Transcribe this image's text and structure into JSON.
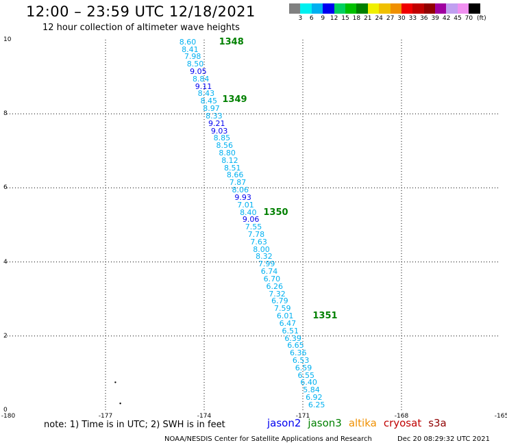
{
  "header": {
    "title": "12:00 – 23:59 UTC 12/18/2021",
    "subtitle": "12 hour collection of altimeter wave heights"
  },
  "colorbar": {
    "colors": [
      "#808080",
      "#00f0f0",
      "#00b0f0",
      "#0000f0",
      "#00d060",
      "#00c000",
      "#008000",
      "#f0f000",
      "#f0c000",
      "#f09000",
      "#f00000",
      "#c00000",
      "#900000",
      "#a000a0",
      "#c0a0f0",
      "#f090f0",
      "#000000"
    ],
    "labels": [
      "3",
      "6",
      "9",
      "12",
      "15",
      "18",
      "21",
      "24",
      "27",
      "30",
      "33",
      "36",
      "39",
      "42",
      "45",
      "70",
      "(ft)"
    ]
  },
  "map_data": {
    "lon_range": [
      -180,
      -165
    ],
    "lat_range": [
      0,
      10
    ],
    "x_ticks": [
      "-180",
      "-177",
      "-174",
      "-171",
      "-168",
      "-165"
    ],
    "y_ticks": [
      "0",
      "2",
      "4",
      "6",
      "8",
      "10"
    ],
    "measurements": [
      {
        "lon": -174.5,
        "lat": 9.95,
        "value": "8.60"
      },
      {
        "lon": -174.43,
        "lat": 9.75,
        "value": "8.41"
      },
      {
        "lon": -174.35,
        "lat": 9.55,
        "value": "7.98"
      },
      {
        "lon": -174.27,
        "lat": 9.35,
        "value": "8.50"
      },
      {
        "lon": -174.18,
        "lat": 9.15,
        "value": "9.05"
      },
      {
        "lon": -174.1,
        "lat": 8.95,
        "value": "8.84"
      },
      {
        "lon": -174.02,
        "lat": 8.75,
        "value": "9.11"
      },
      {
        "lon": -173.94,
        "lat": 8.55,
        "value": "8.43"
      },
      {
        "lon": -173.86,
        "lat": 8.35,
        "value": "8.45"
      },
      {
        "lon": -173.78,
        "lat": 8.15,
        "value": "8.97"
      },
      {
        "lon": -173.7,
        "lat": 7.95,
        "value": "8.33"
      },
      {
        "lon": -173.62,
        "lat": 7.75,
        "value": "9.21"
      },
      {
        "lon": -173.54,
        "lat": 7.55,
        "value": "9.03"
      },
      {
        "lon": -173.46,
        "lat": 7.35,
        "value": "8.85"
      },
      {
        "lon": -173.38,
        "lat": 7.15,
        "value": "8.56"
      },
      {
        "lon": -173.3,
        "lat": 6.95,
        "value": "8.80"
      },
      {
        "lon": -173.22,
        "lat": 6.75,
        "value": "8.12"
      },
      {
        "lon": -173.14,
        "lat": 6.55,
        "value": "8.51"
      },
      {
        "lon": -173.06,
        "lat": 6.35,
        "value": "8.66"
      },
      {
        "lon": -172.98,
        "lat": 6.15,
        "value": "7.87"
      },
      {
        "lon": -172.9,
        "lat": 5.95,
        "value": "8.06"
      },
      {
        "lon": -172.82,
        "lat": 5.75,
        "value": "9.93"
      },
      {
        "lon": -172.74,
        "lat": 5.55,
        "value": "7.01"
      },
      {
        "lon": -172.66,
        "lat": 5.35,
        "value": "8.40"
      },
      {
        "lon": -172.58,
        "lat": 5.15,
        "value": "9.06"
      },
      {
        "lon": -172.5,
        "lat": 4.95,
        "value": "7.55"
      },
      {
        "lon": -172.42,
        "lat": 4.75,
        "value": "7.78"
      },
      {
        "lon": -172.34,
        "lat": 4.55,
        "value": "7.63"
      },
      {
        "lon": -172.26,
        "lat": 4.35,
        "value": "8.00"
      },
      {
        "lon": -172.18,
        "lat": 4.15,
        "value": "8.32"
      },
      {
        "lon": -172.1,
        "lat": 3.95,
        "value": "7.99"
      },
      {
        "lon": -172.02,
        "lat": 3.75,
        "value": "6.74"
      },
      {
        "lon": -171.94,
        "lat": 3.55,
        "value": "6.70"
      },
      {
        "lon": -171.86,
        "lat": 3.35,
        "value": "6.26"
      },
      {
        "lon": -171.78,
        "lat": 3.15,
        "value": "7.32"
      },
      {
        "lon": -171.7,
        "lat": 2.95,
        "value": "6.79"
      },
      {
        "lon": -171.62,
        "lat": 2.75,
        "value": "7.59"
      },
      {
        "lon": -171.54,
        "lat": 2.55,
        "value": "6.01"
      },
      {
        "lon": -171.46,
        "lat": 2.35,
        "value": "6.47"
      },
      {
        "lon": -171.38,
        "lat": 2.15,
        "value": "6.51"
      },
      {
        "lon": -171.3,
        "lat": 1.95,
        "value": "6.39"
      },
      {
        "lon": -171.22,
        "lat": 1.75,
        "value": "6.65"
      },
      {
        "lon": -171.14,
        "lat": 1.55,
        "value": "6.36"
      },
      {
        "lon": -171.06,
        "lat": 1.35,
        "value": "6.53"
      },
      {
        "lon": -170.98,
        "lat": 1.15,
        "value": "6.59"
      },
      {
        "lon": -170.9,
        "lat": 0.95,
        "value": "6.55"
      },
      {
        "lon": -170.82,
        "lat": 0.75,
        "value": "6.40"
      },
      {
        "lon": -170.74,
        "lat": 0.55,
        "value": "5.84"
      },
      {
        "lon": -170.66,
        "lat": 0.35,
        "value": "6.92"
      },
      {
        "lon": -170.58,
        "lat": 0.15,
        "value": "6.25"
      }
    ],
    "cycle_labels": [
      {
        "lon": -173.55,
        "lat": 9.95,
        "text": "1348"
      },
      {
        "lon": -173.45,
        "lat": 8.4,
        "text": "1349"
      },
      {
        "lon": -172.2,
        "lat": 5.35,
        "text": "1350"
      },
      {
        "lon": -170.7,
        "lat": 2.55,
        "text": "1351"
      }
    ],
    "land_dots": [
      {
        "lon": -176.7,
        "lat": 0.75
      },
      {
        "lon": -176.55,
        "lat": 0.18
      }
    ]
  },
  "footer": {
    "note": "note:  1) Time is in UTC;  2) SWH is in feet",
    "legend": [
      {
        "name": "jason2",
        "color": "#0000f0"
      },
      {
        "name": "jason3",
        "color": "#008000"
      },
      {
        "name": "altika",
        "color": "#f09000"
      },
      {
        "name": "cryosat",
        "color": "#c00000"
      },
      {
        "name": "s3a",
        "color": "#900000"
      }
    ],
    "credit": "NOAA/NESDIS Center for Satellite Applications and Research",
    "timestamp": "Dec 20 08:29:32 UTC 2021"
  }
}
